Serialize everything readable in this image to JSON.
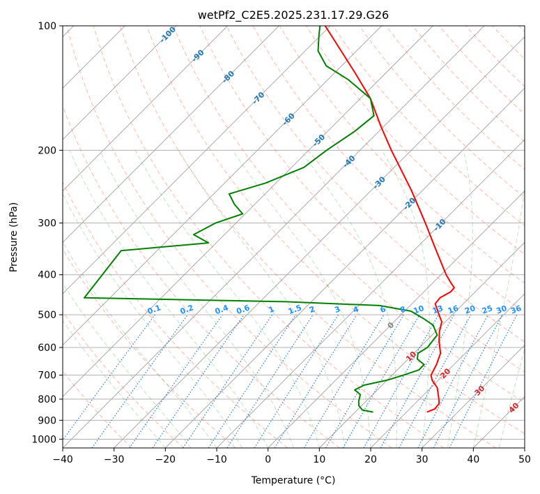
{
  "chart_data": {
    "type": "skew-t",
    "title": "wetPf2_C2E5.2025.231.17.29.G26",
    "xlabel": "Temperature (°C)",
    "ylabel": "Pressure (hPa)",
    "xlim": [
      -40,
      50
    ],
    "ylim": [
      1050,
      100
    ],
    "x_ticks": [
      "−40",
      "−30",
      "−20",
      "−10",
      "0",
      "10",
      "20",
      "30",
      "40",
      "50"
    ],
    "y_ticks": [
      "100",
      "200",
      "300",
      "400",
      "500",
      "600",
      "700",
      "800",
      "900",
      "1000"
    ],
    "x_tick_values": [
      -40,
      -30,
      -20,
      -10,
      0,
      10,
      20,
      30,
      40,
      50
    ],
    "y_tick_values": [
      100,
      200,
      300,
      400,
      500,
      600,
      700,
      800,
      900,
      1000
    ],
    "grid": true,
    "skew": 45,
    "series": [
      {
        "kind": "temperature",
        "color": "#ff0000",
        "points": [
          {
            "p": 860,
            "t": 24.0
          },
          {
            "p": 845,
            "t": 24.9
          },
          {
            "p": 820,
            "t": 24.7
          },
          {
            "p": 790,
            "t": 23.3
          },
          {
            "p": 750,
            "t": 21.2
          },
          {
            "p": 720,
            "t": 18.8
          },
          {
            "p": 700,
            "t": 17.6
          },
          {
            "p": 660,
            "t": 16.6
          },
          {
            "p": 620,
            "t": 15.2
          },
          {
            "p": 580,
            "t": 12.6
          },
          {
            "p": 550,
            "t": 10.8
          },
          {
            "p": 520,
            "t": 9.3
          },
          {
            "p": 500,
            "t": 7.4
          },
          {
            "p": 470,
            "t": 4.5
          },
          {
            "p": 455,
            "t": 4.3
          },
          {
            "p": 440,
            "t": 5.2
          },
          {
            "p": 430,
            "t": 5.1
          },
          {
            "p": 420,
            "t": 3.7
          },
          {
            "p": 400,
            "t": 1.0
          },
          {
            "p": 350,
            "t": -5.6
          },
          {
            "p": 300,
            "t": -13.1
          },
          {
            "p": 250,
            "t": -22.2
          },
          {
            "p": 200,
            "t": -33.9
          },
          {
            "p": 175,
            "t": -40.6
          },
          {
            "p": 150,
            "t": -48.0
          },
          {
            "p": 130,
            "t": -56.0
          },
          {
            "p": 115,
            "t": -63.0
          },
          {
            "p": 100,
            "t": -71.0
          }
        ]
      },
      {
        "kind": "dewpoint",
        "color": "#008000",
        "points": [
          {
            "p": 860,
            "t": 13.5
          },
          {
            "p": 850,
            "t": 11.0
          },
          {
            "p": 830,
            "t": 9.5
          },
          {
            "p": 810,
            "t": 8.6
          },
          {
            "p": 780,
            "t": 7.6
          },
          {
            "p": 760,
            "t": 5.6
          },
          {
            "p": 740,
            "t": 6.5
          },
          {
            "p": 720,
            "t": 10.0
          },
          {
            "p": 700,
            "t": 12.2
          },
          {
            "p": 680,
            "t": 14.2
          },
          {
            "p": 660,
            "t": 14.2
          },
          {
            "p": 640,
            "t": 11.8
          },
          {
            "p": 620,
            "t": 10.8
          },
          {
            "p": 600,
            "t": 11.5
          },
          {
            "p": 560,
            "t": 11.0
          },
          {
            "p": 530,
            "t": 8.3
          },
          {
            "p": 510,
            "t": 5.0
          },
          {
            "p": 490,
            "t": 1.2
          },
          {
            "p": 475,
            "t": -6.0
          },
          {
            "p": 465,
            "t": -25.0
          },
          {
            "p": 455,
            "t": -65.0
          },
          {
            "p": 350,
            "t": -67.0
          },
          {
            "p": 335,
            "t": -51.5
          },
          {
            "p": 320,
            "t": -56.0
          },
          {
            "p": 300,
            "t": -54.0
          },
          {
            "p": 285,
            "t": -50.5
          },
          {
            "p": 270,
            "t": -54.0
          },
          {
            "p": 255,
            "t": -57.0
          },
          {
            "p": 240,
            "t": -52.0
          },
          {
            "p": 220,
            "t": -47.6
          },
          {
            "p": 200,
            "t": -46.5
          },
          {
            "p": 180,
            "t": -44.7
          },
          {
            "p": 165,
            "t": -44.0
          },
          {
            "p": 150,
            "t": -48.0
          },
          {
            "p": 135,
            "t": -56.0
          },
          {
            "p": 125,
            "t": -63.0
          },
          {
            "p": 115,
            "t": -67.5
          },
          {
            "p": 105,
            "t": -70.5
          },
          {
            "p": 100,
            "t": -72.0
          }
        ]
      }
    ],
    "isotherm_labels": [
      "-100",
      "-90",
      "-80",
      "-70",
      "-60",
      "-50",
      "-40",
      "-30",
      "-20",
      "-10"
    ],
    "isotherm_label_values": [
      -100,
      -90,
      -80,
      -70,
      -60,
      -50,
      -40,
      -30,
      -20,
      -10
    ],
    "mixing_ratio_labels": [
      "0.1",
      "0.2",
      "0.4",
      "0.6",
      "1",
      "1.5",
      "2",
      "3",
      "4",
      "6",
      "8",
      "10",
      "13",
      "16",
      "20",
      "25",
      "30",
      "36"
    ],
    "mixing_ratio_values": [
      0.1,
      0.2,
      0.4,
      0.6,
      1,
      1.5,
      2,
      3,
      4,
      6,
      8,
      10,
      13,
      16,
      20,
      25,
      30,
      36
    ],
    "dry_adiabat_labels": [
      "10",
      "20",
      "30",
      "40"
    ],
    "dry_adiabat_label_values": [
      10,
      20,
      30,
      40
    ],
    "zero_isotherm_label": "0",
    "colors": {
      "isotherm": "#a0a0a0",
      "isobar": "#b0b0b0",
      "dry_adiabat": "#ff6040",
      "moist_adiabat": "#2ca02c",
      "mixing_ratio": "#1e78d2",
      "temperature": "#ff0000",
      "dewpoint": "#008000",
      "isotherm_label": "#1f77b4",
      "mixing_label": "#1e90ff",
      "dry_label": "#d62728"
    }
  }
}
